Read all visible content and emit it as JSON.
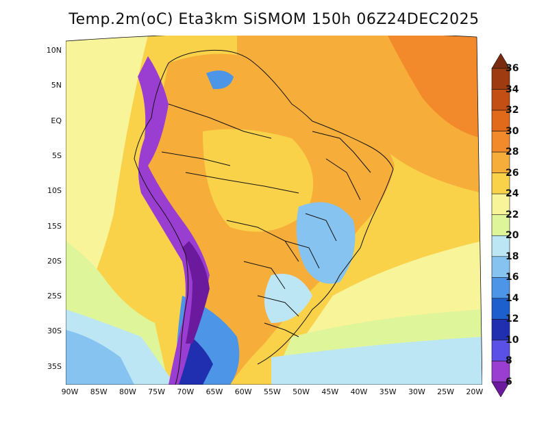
{
  "title": "Temp.2m(oC) Eta3km SiSMOM 150h 06Z24DEC2025",
  "lat_labels": [
    "10N",
    "5N",
    "EQ",
    "5S",
    "10S",
    "15S",
    "20S",
    "25S",
    "30S",
    "35S"
  ],
  "lon_labels": [
    "90W",
    "85W",
    "80W",
    "75W",
    "70W",
    "65W",
    "60W",
    "55W",
    "50W",
    "45W",
    "40W",
    "35W",
    "30W",
    "25W",
    "20W"
  ],
  "colorbar": {
    "labels": [
      "36",
      "34",
      "32",
      "30",
      "28",
      "26",
      "24",
      "22",
      "20",
      "18",
      "16",
      "14",
      "12",
      "10",
      "8",
      "6"
    ],
    "colors": [
      "#7a2a0e",
      "#9e3b10",
      "#c44f14",
      "#e06a1a",
      "#f28a2c",
      "#f6ad3a",
      "#f9d24a",
      "#f8f49a",
      "#dff59a",
      "#bde6f5",
      "#86c3f0",
      "#4d95e6",
      "#1d5fcc",
      "#1f2fb0",
      "#5a4fe6",
      "#9a3ed1",
      "#6b1a9e"
    ]
  }
}
